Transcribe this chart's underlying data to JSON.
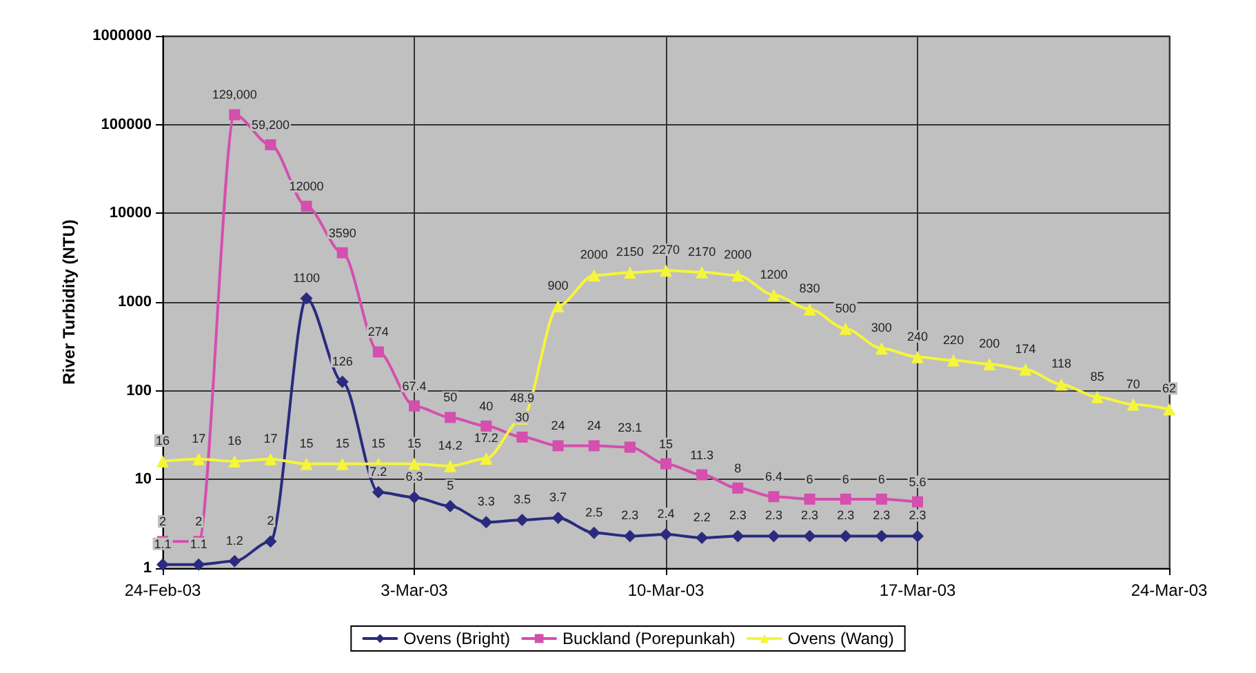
{
  "chart_data": {
    "type": "line",
    "ylabel": "River Turbidity (NTU)",
    "log": "y",
    "ylim": [
      1,
      1000000
    ],
    "yticks": [
      1,
      10,
      100,
      1000,
      10000,
      100000,
      1000000
    ],
    "xlim": [
      "--02-24",
      "--03-24"
    ],
    "xticks": [
      {
        "value": "--02-24",
        "label": "24-Feb-03"
      },
      {
        "value": "--03-03",
        "label": "3-Mar-03"
      },
      {
        "value": "--03-10",
        "label": "10-Mar-03"
      },
      {
        "value": "--03-17",
        "label": "17-Mar-03"
      },
      {
        "value": "--03-24",
        "label": "24-Mar-03"
      }
    ],
    "grid": true,
    "legend": "bottom",
    "line_style": "solid",
    "series": [
      {
        "name": "Ovens (Bright)",
        "color": "#2a2a7e",
        "marker": "diamond",
        "x": [
          "--02-24",
          "--02-25",
          "--02-26",
          "--02-27",
          "--02-28",
          "--03-01",
          "--03-02",
          "--03-03",
          "--03-04",
          "--03-05",
          "--03-06",
          "--03-07",
          "--03-08",
          "--03-09",
          "--03-10",
          "--03-11",
          "--03-12",
          "--03-13",
          "--03-14",
          "--03-15",
          "--03-16",
          "--03-17"
        ],
        "values": [
          1.1,
          1.1,
          1.2,
          2,
          1100,
          126,
          7.2,
          6.3,
          5,
          3.3,
          3.5,
          3.7,
          2.5,
          2.3,
          2.4,
          2.2,
          2.3,
          2.3,
          2.3,
          2.3,
          2.3,
          2.3
        ],
        "value_labels": [
          "1.1",
          "1.1",
          "1.2",
          "2",
          "1100",
          "126",
          "7.2",
          "6.3",
          "5",
          "3.3",
          "3.5",
          "3.7",
          "2.5",
          "2.3",
          "2.4",
          "2.2",
          "2.3",
          "2.3",
          "2.3",
          "2.3",
          "2.3",
          "2.3"
        ]
      },
      {
        "name": "Buckland (Porepunkah)",
        "color": "#d44fae",
        "marker": "square",
        "x": [
          "--02-24",
          "--02-25",
          "--02-26",
          "--02-27",
          "--02-28",
          "--03-01",
          "--03-02",
          "--03-03",
          "--03-04",
          "--03-05",
          "--03-06",
          "--03-07",
          "--03-08",
          "--03-09",
          "--03-10",
          "--03-11",
          "--03-12",
          "--03-13",
          "--03-14",
          "--03-15",
          "--03-16",
          "--03-17"
        ],
        "values": [
          2,
          2,
          129000,
          59200,
          12000,
          3590,
          274,
          67.4,
          50,
          40,
          30,
          24,
          24,
          23.1,
          15,
          11.3,
          8,
          6.4,
          6,
          6,
          6,
          5.6
        ],
        "value_labels": [
          "2",
          "2",
          "129,000",
          "59,200",
          "12000",
          "3590",
          "274",
          "67.4",
          "50",
          "40",
          "30",
          "24",
          "24",
          "23.1",
          "15",
          "11.3",
          "8",
          "6.4",
          "6",
          "6",
          "6",
          "5.6"
        ]
      },
      {
        "name": "Ovens (Wang)",
        "color": "#f5f53a",
        "marker": "triangle",
        "x": [
          "--02-24",
          "--02-25",
          "--02-26",
          "--02-27",
          "--02-28",
          "--03-01",
          "--03-02",
          "--03-03",
          "--03-04",
          "--03-05",
          "--03-06",
          "--03-07",
          "--03-08",
          "--03-09",
          "--03-10",
          "--03-11",
          "--03-12",
          "--03-13",
          "--03-14",
          "--03-15",
          "--03-16",
          "--03-17",
          "--03-18",
          "--03-19",
          "--03-20",
          "--03-21",
          "--03-22",
          "--03-23",
          "--03-24"
        ],
        "values": [
          16,
          17,
          16,
          17,
          15,
          15,
          15,
          15,
          14.2,
          17.2,
          48.9,
          900,
          2000,
          2150,
          2270,
          2170,
          2000,
          1200,
          830,
          500,
          300,
          240,
          220,
          200,
          174,
          118,
          85,
          70,
          62
        ],
        "value_labels": [
          "16",
          "17",
          "16",
          "17",
          "15",
          "15",
          "15",
          "15",
          "14.2",
          "17.2",
          "48.9",
          "900",
          "2000",
          "2150",
          "2270",
          "2170",
          "2000",
          "1200",
          "830",
          "500",
          "300",
          "240",
          "220",
          "200",
          "174",
          "118",
          "85",
          "70",
          "62"
        ]
      }
    ]
  }
}
